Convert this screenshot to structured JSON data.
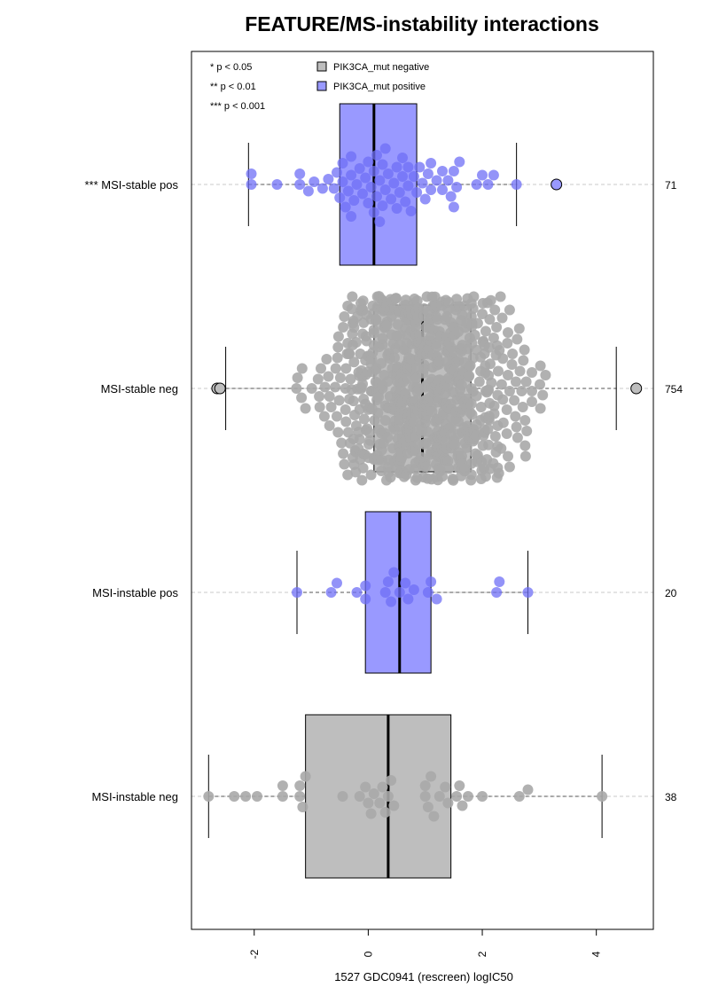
{
  "chart_data": {
    "type": "boxplot-beeswarm",
    "title": "FEATURE/MS-instability interactions",
    "xlabel": "1527 GDC0941 (rescreen) logIC50",
    "xlim": [
      -3.1,
      5.0
    ],
    "x_ticks": [
      -2,
      0,
      2,
      4
    ],
    "grid": "dashed horizontal reference lines per group",
    "significance_legend": [
      "* p < 0.05",
      "** p < 0.01",
      "*** p < 0.001"
    ],
    "legend_position": "top-left",
    "legend": [
      {
        "label": "PIK3CA_mut negative",
        "color": "#bebebe"
      },
      {
        "label": "PIK3CA_mut positive",
        "color": "#9999ff"
      }
    ],
    "colors": {
      "negative_fill": "#bebebe",
      "positive_fill": "#9999ff",
      "negative_point": "#a9a9a9",
      "positive_point": "#6f6ff5"
    },
    "groups": [
      {
        "label": "*** MSI-stable pos",
        "n": "71",
        "mutation": "positive",
        "q1": -0.5,
        "median": 0.1,
        "q3": 0.85,
        "whisker_low": -2.1,
        "whisker_high": 2.6,
        "outliers": [
          3.3
        ],
        "points": [
          -2.05,
          -2.05,
          -1.6,
          -1.2,
          -1.2,
          -1.05,
          -0.95,
          -0.8,
          -0.7,
          -0.6,
          -0.55,
          -0.5,
          -0.45,
          -0.45,
          -0.4,
          -0.35,
          -0.3,
          -0.3,
          -0.25,
          -0.2,
          -0.15,
          -0.1,
          -0.05,
          0.0,
          0.0,
          0.05,
          0.1,
          0.1,
          0.15,
          0.15,
          0.2,
          0.25,
          0.25,
          0.3,
          0.3,
          0.35,
          0.4,
          0.45,
          0.5,
          0.5,
          0.55,
          0.6,
          0.65,
          0.7,
          0.7,
          0.75,
          0.8,
          0.85,
          0.9,
          0.95,
          1.0,
          1.05,
          1.1,
          1.1,
          1.2,
          1.3,
          1.4,
          1.45,
          1.5,
          1.5,
          1.55,
          1.6,
          1.9,
          2.0,
          2.1,
          2.2,
          2.6,
          -0.3,
          0.2,
          0.6,
          1.3
        ]
      },
      {
        "label": "MSI-stable neg",
        "n": "754",
        "mutation": "negative",
        "q1": 0.1,
        "median": 0.95,
        "q3": 1.8,
        "whisker_low": -2.5,
        "whisker_high": 4.35,
        "outliers": [
          -2.65,
          -2.6,
          4.7
        ]
      },
      {
        "label": "MSI-instable pos",
        "n": "20",
        "mutation": "positive",
        "q1": -0.05,
        "median": 0.55,
        "q3": 1.1,
        "whisker_low": -1.25,
        "whisker_high": 2.8,
        "outliers": [],
        "points": [
          -1.25,
          -0.65,
          -0.55,
          -0.2,
          -0.05,
          -0.05,
          0.3,
          0.35,
          0.4,
          0.45,
          0.55,
          0.65,
          0.7,
          0.8,
          1.05,
          1.1,
          1.2,
          2.25,
          2.3,
          2.8
        ]
      },
      {
        "label": "MSI-instable neg",
        "n": "38",
        "mutation": "negative",
        "q1": -1.1,
        "median": 0.35,
        "q3": 1.45,
        "whisker_low": -2.8,
        "whisker_high": 4.1,
        "outliers": [],
        "points": [
          -2.8,
          -2.35,
          -2.15,
          -1.95,
          -1.5,
          -1.5,
          -1.2,
          -1.2,
          -1.15,
          -1.1,
          -0.45,
          -0.15,
          -0.05,
          0.0,
          0.05,
          0.1,
          0.2,
          0.25,
          0.3,
          0.35,
          0.4,
          0.45,
          1.0,
          1.0,
          1.05,
          1.1,
          1.15,
          1.25,
          1.35,
          1.4,
          1.55,
          1.6,
          1.65,
          1.75,
          2.0,
          2.65,
          2.8,
          4.1
        ]
      }
    ]
  }
}
